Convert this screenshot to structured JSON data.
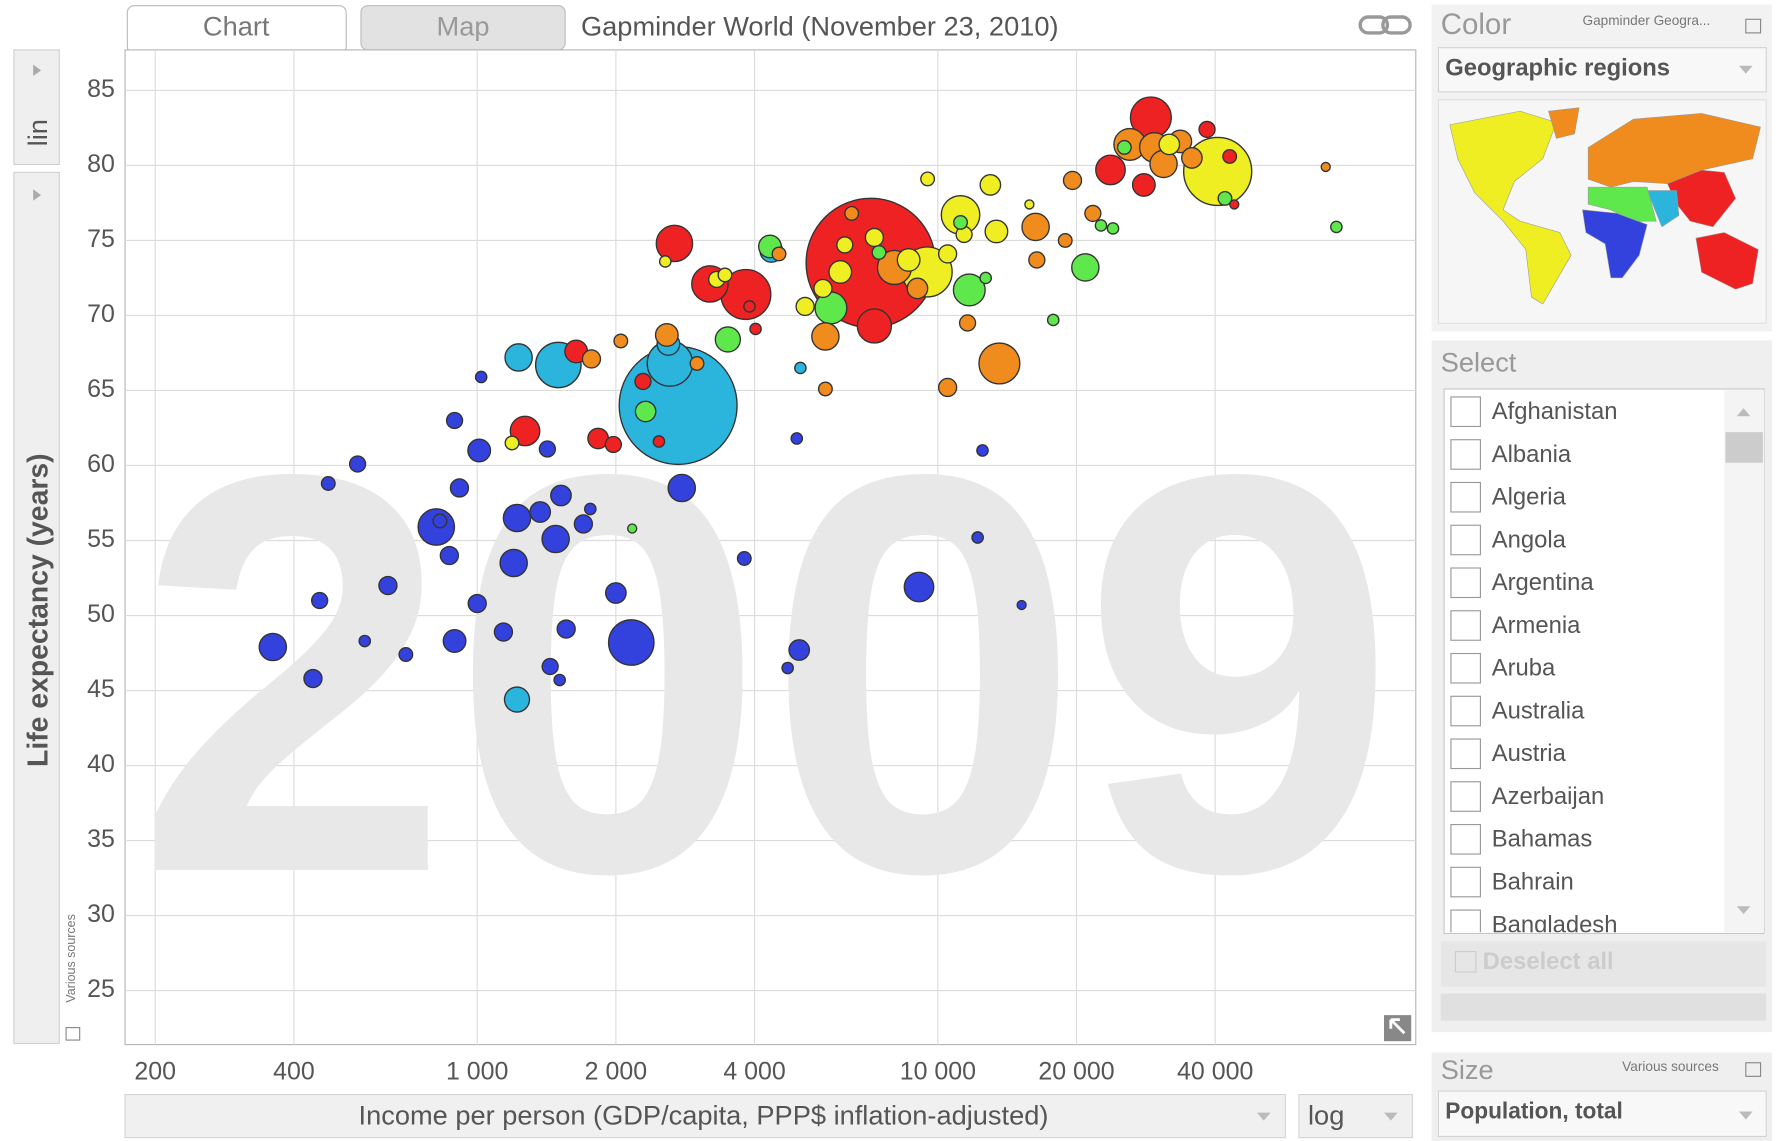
{
  "ui": {
    "tabs": [
      "Chart",
      "Map"
    ],
    "title": "Gapminder World (November 23, 2010)",
    "y_scale": "lin",
    "x_scale": "log",
    "y_source": "Various sources",
    "color": {
      "header": "Color",
      "source": "Gapminder Geogra...",
      "selected": "Geographic regions"
    },
    "select": {
      "header": "Select",
      "items": [
        "Afghanistan",
        "Albania",
        "Algeria",
        "Angola",
        "Argentina",
        "Armenia",
        "Aruba",
        "Australia",
        "Austria",
        "Azerbaijan",
        "Bahamas",
        "Bahrain",
        "Bangladesh"
      ],
      "deselect": "Deselect all"
    },
    "size": {
      "header": "Size",
      "source": "Various sources",
      "selected": "Population, total"
    }
  },
  "chart_data": {
    "type": "scatter",
    "watermark": "2009",
    "log_x": true,
    "grid": true,
    "xlabel": "Income per person (GDP/capita, PPP$ inflation-adjusted)",
    "ylabel": "Life expectancy (years)",
    "xlim": [
      172,
      109000
    ],
    "ylim": [
      21.4,
      87.7
    ],
    "xticks": [
      200,
      400,
      {
        "value": 1000,
        "label": "1 000"
      },
      {
        "value": 2000,
        "label": "2 000"
      },
      {
        "value": 4000,
        "label": "4 000"
      },
      {
        "value": 10000,
        "label": "10 000"
      },
      {
        "value": 20000,
        "label": "20 000"
      },
      {
        "value": 40000,
        "label": "40 000"
      }
    ],
    "yticks": [
      25,
      30,
      35,
      40,
      45,
      50,
      55,
      60,
      65,
      70,
      75,
      80,
      85
    ],
    "series": [
      {
        "color": "#3341dd",
        "x": [
          360,
          440,
          455,
          475,
          550,
          570,
          640,
          700,
          815,
          830,
          870,
          893,
          893,
          915,
          1000,
          1010,
          1020,
          1140,
          1200,
          1220,
          1370,
          1420,
          1480,
          1520,
          1560,
          1440,
          1510,
          1700,
          1760,
          2000,
          2160,
          2780,
          3800,
          4940,
          5000,
          4720,
          9100,
          12200,
          12500,
          15200
        ],
        "values": [
          47.9,
          45.8,
          51.0,
          58.8,
          60.1,
          48.3,
          52.0,
          47.4,
          55.9,
          56.3,
          54.0,
          48.3,
          63.0,
          58.5,
          50.8,
          61.0,
          65.9,
          48.9,
          53.5,
          56.5,
          56.9,
          61.1,
          55.1,
          58.0,
          49.1,
          46.6,
          45.7,
          56.1,
          57.1,
          51.5,
          48.2,
          58.5,
          53.8,
          61.8,
          47.7,
          46.5,
          51.9,
          55.2,
          61.0,
          50.7
        ],
        "sizes": [
          64000000,
          28000000,
          22000000,
          16000000,
          22000000,
          11000000,
          28000000,
          16000000,
          114000000,
          16000000,
          28000000,
          44000000,
          22000000,
          28000000,
          28000000,
          44000000,
          11000000,
          28000000,
          64000000,
          64000000,
          36000000,
          22000000,
          64000000,
          36000000,
          28000000,
          22000000,
          11000000,
          28000000,
          11000000,
          36000000,
          178000000,
          64000000,
          16000000,
          11000000,
          36000000,
          11000000,
          75000000,
          11000000,
          11000000,
          7000000
        ]
      },
      {
        "color": "#2bb5dd",
        "x": [
          2730,
          2620,
          2600,
          1500,
          1230,
          1220,
          4350,
          5030
        ],
        "values": [
          64.0,
          66.8,
          68.1,
          66.7,
          67.2,
          44.4,
          74.3,
          66.5
        ],
        "sizes": [
          1200000000,
          178000000,
          44000000,
          178000000,
          64000000,
          54000000,
          44000000,
          11000000
        ]
      },
      {
        "color": "#ee2222",
        "x": [
          7150,
          2680,
          3200,
          3830,
          7280,
          1270,
          1640,
          1830,
          1975,
          2290,
          2480,
          29000,
          23700,
          28000,
          38400,
          43000,
          44000,
          4020,
          3900
        ],
        "values": [
          73.5,
          74.8,
          72.1,
          71.4,
          69.3,
          62.3,
          67.6,
          61.8,
          61.4,
          65.6,
          61.6,
          83.2,
          79.7,
          78.7,
          82.4,
          80.6,
          77.4,
          69.1,
          70.6
        ],
        "sizes": [
          1444000000,
          114000000,
          114000000,
          215000000,
          100000000,
          75000000,
          44000000,
          36000000,
          22000000,
          22000000,
          11000000,
          144000000,
          75000000,
          44000000,
          22000000,
          16000000,
          7000000,
          11000000,
          11000000
        ]
      },
      {
        "color": "#eeee22",
        "x": [
          40500,
          9480,
          11200,
          13000,
          9500,
          13400,
          7280,
          8640,
          6140,
          5630,
          5150,
          6280,
          3310,
          3450,
          2560,
          1190,
          15800,
          31800,
          11400,
          10500
        ],
        "values": [
          79.6,
          72.9,
          76.7,
          78.7,
          79.1,
          75.6,
          75.2,
          73.7,
          72.9,
          71.8,
          70.6,
          74.7,
          72.4,
          72.7,
          73.6,
          61.5,
          77.4,
          81.4,
          75.4,
          74.1
        ],
        "sizes": [
          400000000,
          215000000,
          128000000,
          36000000,
          16000000,
          44000000,
          28000000,
          44000000,
          44000000,
          28000000,
          28000000,
          22000000,
          22000000,
          16000000,
          11000000,
          16000000,
          7000000,
          36000000,
          22000000,
          28000000
        ]
      },
      {
        "color": "#f08c1e",
        "x": [
          29500,
          26100,
          33600,
          35600,
          30900,
          19600,
          21700,
          16300,
          18900,
          16400,
          13600,
          11600,
          10500,
          5700,
          5700,
          4520,
          6500,
          9030,
          8050,
          3000,
          2580,
          2050,
          1770,
          69500
        ],
        "values": [
          81.2,
          81.4,
          81.6,
          80.5,
          80.1,
          79.0,
          76.8,
          75.9,
          75.0,
          73.7,
          66.8,
          69.5,
          65.2,
          68.6,
          65.1,
          74.1,
          76.8,
          71.8,
          73.2,
          66.8,
          68.7,
          68.3,
          67.1,
          79.9
        ],
        "sizes": [
          75000000,
          87000000,
          44000000,
          36000000,
          64000000,
          28000000,
          22000000,
          64000000,
          16000000,
          22000000,
          144000000,
          22000000,
          28000000,
          64000000,
          16000000,
          16000000,
          16000000,
          36000000,
          100000000,
          16000000,
          44000000,
          16000000,
          28000000,
          7000000
        ]
      },
      {
        "color": "#5ee84c",
        "x": [
          5860,
          3500,
          11700,
          20900,
          73300,
          22600,
          24000,
          17800,
          11200,
          12700,
          7450,
          2320,
          2170,
          4320,
          25400,
          42000
        ],
        "values": [
          70.5,
          68.4,
          71.7,
          73.2,
          75.9,
          76.0,
          75.8,
          69.7,
          76.2,
          72.5,
          74.2,
          63.6,
          55.8,
          74.6,
          81.2,
          77.8
        ],
        "sizes": [
          87000000,
          54000000,
          87000000,
          64000000,
          11000000,
          11000000,
          11000000,
          11000000,
          16000000,
          11000000,
          16000000,
          36000000,
          7000000,
          44000000,
          16000000,
          16000000
        ]
      }
    ]
  }
}
